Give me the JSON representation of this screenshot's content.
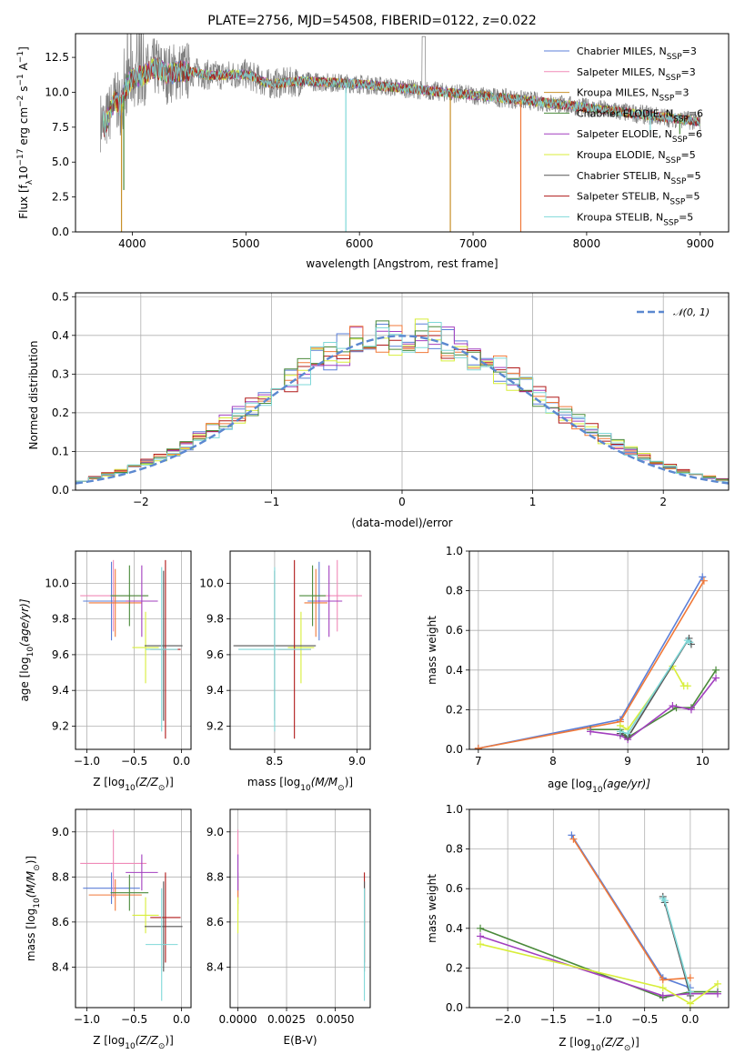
{
  "figure_title": "PLATE=2756, MJD=54508, FIBERID=0122, z=0.022",
  "colors": {
    "chabrier_miles": "#5b7fd8",
    "salpeter_miles": "#f08ab8",
    "kroupa_miles": "#c8902a",
    "chabrier_elodie": "#4a8a3a",
    "salpeter_elodie": "#a23fbf",
    "kroupa_elodie": "#d8ee3a",
    "chabrier_stelib": "#555555",
    "salpeter_stelib": "#b01818",
    "kroupa_stelib": "#7fd8d8",
    "orange": "#f07838",
    "teal": "#5aa0b8",
    "gauss": "#5b88d0"
  },
  "chart_data": [
    {
      "id": "spectrum",
      "type": "line",
      "title": "",
      "xlabel": "wavelength [Angstrom, rest frame]",
      "ylabel_parts": [
        "Flux [f",
        "λ",
        "10",
        "−17",
        " erg cm",
        "−2",
        " s",
        "−1",
        " A",
        "−1",
        "]"
      ],
      "xlim": [
        3500,
        9250
      ],
      "ylim": [
        0,
        14.2
      ],
      "xticks": [
        "4000",
        "5000",
        "6000",
        "7000",
        "8000",
        "9000"
      ],
      "yticks": [
        "0.0",
        "2.5",
        "5.0",
        "7.5",
        "10.0",
        "12.5"
      ],
      "legend_position": "top-right",
      "legend": [
        {
          "name": "Chabrier MILES, N",
          "sub": "SSP",
          "suffix": "=3",
          "color_key": "chabrier_miles"
        },
        {
          "name": "Salpeter MILES, N",
          "sub": "SSP",
          "suffix": "=3",
          "color_key": "salpeter_miles"
        },
        {
          "name": "Kroupa MILES, N",
          "sub": "SSP",
          "suffix": "=3",
          "color_key": "kroupa_miles"
        },
        {
          "name": "Chabrier ELODIE, N",
          "sub": "SSP",
          "suffix": "=6",
          "color_key": "chabrier_elodie"
        },
        {
          "name": "Salpeter ELODIE, N",
          "sub": "SSP",
          "suffix": "=6",
          "color_key": "salpeter_elodie"
        },
        {
          "name": "Kroupa ELODIE, N",
          "sub": "SSP",
          "suffix": "=5",
          "color_key": "kroupa_elodie"
        },
        {
          "name": "Chabrier STELIB, N",
          "sub": "SSP",
          "suffix": "=5",
          "color_key": "chabrier_stelib"
        },
        {
          "name": "Salpeter STELIB, N",
          "sub": "SSP",
          "suffix": "=5",
          "color_key": "salpeter_stelib"
        },
        {
          "name": "Kroupa STELIB, N",
          "sub": "SSP",
          "suffix": "=5",
          "color_key": "kroupa_stelib"
        }
      ],
      "continuum": {
        "x": [
          3750,
          3800,
          3850,
          3900,
          3950,
          4000,
          4100,
          4200,
          4300,
          4400,
          4500,
          4700,
          5000,
          5200,
          5500,
          6000,
          6500,
          7000,
          7500,
          8000,
          8500,
          9000
        ],
        "y": [
          7.5,
          8.5,
          9.5,
          9.0,
          10.5,
          11.0,
          11.2,
          11.8,
          11.3,
          11.5,
          11.5,
          11.2,
          11.3,
          10.6,
          10.8,
          10.6,
          10.2,
          9.8,
          9.4,
          8.9,
          8.4,
          7.9
        ]
      },
      "dips": [
        {
          "x": 3905,
          "y": 0.0,
          "color_key": "kroupa_miles"
        },
        {
          "x": 3925,
          "y": 3.0,
          "color_key": "chabrier_elodie"
        },
        {
          "x": 5880,
          "y": 0.0,
          "color_key": "kroupa_stelib"
        },
        {
          "x": 6800,
          "y": 0.0,
          "color_key": "kroupa_miles"
        },
        {
          "x": 7420,
          "y": 0.0,
          "color_key": "orange"
        },
        {
          "x": 8560,
          "y": 7.2,
          "color_key": "kroupa_stelib"
        },
        {
          "x": 8820,
          "y": 7.0,
          "color_key": "chabrier_elodie"
        }
      ]
    },
    {
      "id": "residuals",
      "type": "histogram",
      "title": "",
      "xlabel": "(data-model)/error",
      "ylabel": "Normed distribution",
      "xlim": [
        -2.5,
        2.5
      ],
      "ylim": [
        0,
        0.51
      ],
      "xticks": [
        "−2",
        "−1",
        "0",
        "1",
        "2"
      ],
      "yticks": [
        "0.0",
        "0.1",
        "0.2",
        "0.3",
        "0.4",
        "0.5"
      ],
      "legend_position": "top-right",
      "legend": [
        {
          "name": "𝒩(0, 1)",
          "color_key": "gauss"
        }
      ],
      "bin_width": 0.1,
      "bin_start": -2.5,
      "variant_color_keys": [
        "chabrier_miles",
        "salpeter_elodie",
        "kroupa_elodie",
        "salpeter_stelib",
        "orange",
        "chabrier_elodie",
        "kroupa_stelib"
      ]
    },
    {
      "id": "age_vs_Z",
      "type": "scatter",
      "xlabel_parts": [
        "Z [log",
        "10",
        "(Z/Z",
        "⊙",
        ")]"
      ],
      "ylabel_parts": [
        "age  [log",
        "10",
        "(age/yr)]"
      ],
      "xlim": [
        -1.12,
        0.1
      ],
      "ylim": [
        9.07,
        10.18
      ],
      "xticks": [
        "−1.0",
        "−0.5",
        "0.0"
      ],
      "yticks": [
        "9.2",
        "9.4",
        "9.6",
        "9.8",
        "10.0"
      ],
      "points": [
        {
          "x": -0.74,
          "y": 9.9,
          "xerr": 0.3,
          "yerr": 0.22,
          "color_key": "chabrier_miles"
        },
        {
          "x": -0.72,
          "y": 9.93,
          "xerr": 0.35,
          "yerr": 0.2,
          "color_key": "salpeter_miles"
        },
        {
          "x": -0.7,
          "y": 9.89,
          "xerr": 0.28,
          "yerr": 0.19,
          "color_key": "orange"
        },
        {
          "x": -0.55,
          "y": 9.93,
          "xerr": 0.2,
          "yerr": 0.17,
          "color_key": "chabrier_elodie"
        },
        {
          "x": -0.42,
          "y": 9.9,
          "xerr": 0.17,
          "yerr": 0.2,
          "color_key": "salpeter_elodie"
        },
        {
          "x": -0.38,
          "y": 9.64,
          "xerr": 0.14,
          "yerr": 0.2,
          "color_key": "kroupa_elodie"
        },
        {
          "x": -0.19,
          "y": 9.65,
          "xerr": 0.2,
          "yerr": 0.42,
          "color_key": "chabrier_stelib"
        },
        {
          "x": -0.17,
          "y": 9.63,
          "xerr": 0.16,
          "yerr": 0.5,
          "color_key": "salpeter_stelib"
        },
        {
          "x": -0.21,
          "y": 9.63,
          "xerr": 0.17,
          "yerr": 0.46,
          "color_key": "kroupa_stelib"
        }
      ]
    },
    {
      "id": "age_vs_mass",
      "type": "scatter",
      "xlabel_parts": [
        "mass [log",
        "10",
        "(M/M",
        "⊙",
        ")]"
      ],
      "xlim": [
        8.23,
        9.08
      ],
      "ylim": [
        9.07,
        10.18
      ],
      "xticks": [
        "8.5",
        "9.0"
      ],
      "yticks": [
        "9.2",
        "9.4",
        "9.6",
        "9.8",
        "10.0"
      ],
      "points": [
        {
          "x": 8.77,
          "y": 9.9,
          "xerr": 0.07,
          "yerr": 0.22,
          "color_key": "chabrier_miles"
        },
        {
          "x": 8.88,
          "y": 9.93,
          "xerr": 0.15,
          "yerr": 0.2,
          "color_key": "salpeter_miles"
        },
        {
          "x": 8.75,
          "y": 9.89,
          "xerr": 0.07,
          "yerr": 0.19,
          "color_key": "orange"
        },
        {
          "x": 8.73,
          "y": 9.93,
          "xerr": 0.08,
          "yerr": 0.17,
          "color_key": "chabrier_elodie"
        },
        {
          "x": 8.83,
          "y": 9.9,
          "xerr": 0.08,
          "yerr": 0.2,
          "color_key": "salpeter_elodie"
        },
        {
          "x": 8.66,
          "y": 9.64,
          "xerr": 0.08,
          "yerr": 0.2,
          "color_key": "kroupa_elodie"
        },
        {
          "x": 8.5,
          "y": 9.65,
          "xerr": 0.25,
          "yerr": 0.42,
          "color_key": "chabrier_stelib"
        },
        {
          "x": 8.62,
          "y": 9.63,
          "xerr": 0.1,
          "yerr": 0.5,
          "color_key": "salpeter_stelib"
        },
        {
          "x": 8.5,
          "y": 9.63,
          "xerr": 0.22,
          "yerr": 0.46,
          "color_key": "kroupa_stelib"
        }
      ]
    },
    {
      "id": "mass_weight_vs_age",
      "type": "line",
      "xlabel_parts": [
        "age  [log",
        "10",
        "(age/yr)]"
      ],
      "ylabel": "mass weight",
      "xlim": [
        6.88,
        10.35
      ],
      "ylim": [
        0,
        1.0
      ],
      "xticks": [
        "7",
        "8",
        "9",
        "10"
      ],
      "yticks": [
        "0.0",
        "0.2",
        "0.4",
        "0.6",
        "0.8",
        "1.0"
      ],
      "series": [
        {
          "color_key": "chabrier_miles",
          "x": [
            7.0,
            8.9,
            10.0
          ],
          "y": [
            0.005,
            0.15,
            0.87
          ]
        },
        {
          "color_key": "orange",
          "x": [
            7.0,
            8.9,
            10.02
          ],
          "y": [
            0.005,
            0.14,
            0.85
          ]
        },
        {
          "color_key": "chabrier_elodie",
          "x": [
            8.5,
            8.9,
            9.0,
            9.65,
            9.85,
            10.18
          ],
          "y": [
            0.1,
            0.1,
            0.06,
            0.21,
            0.21,
            0.4
          ]
        },
        {
          "color_key": "salpeter_elodie",
          "x": [
            8.5,
            8.9,
            9.0,
            9.6,
            9.85,
            10.18
          ],
          "y": [
            0.09,
            0.07,
            0.05,
            0.22,
            0.2,
            0.36
          ]
        },
        {
          "color_key": "kroupa_elodie",
          "x": [
            8.9,
            9.0,
            9.6,
            9.75,
            9.8
          ],
          "y": [
            0.12,
            0.1,
            0.42,
            0.32,
            0.32
          ]
        },
        {
          "color_key": "chabrier_stelib",
          "x": [
            8.9,
            9.0,
            9.82,
            9.85
          ],
          "y": [
            0.08,
            0.06,
            0.56,
            0.53
          ]
        },
        {
          "color_key": "kroupa_stelib",
          "x": [
            8.9,
            9.0,
            9.8,
            9.83
          ],
          "y": [
            0.09,
            0.08,
            0.55,
            0.54
          ]
        }
      ]
    },
    {
      "id": "mass_vs_Z",
      "type": "scatter",
      "xlabel_parts": [
        "Z [log",
        "10",
        "(Z/Z",
        "⊙",
        ")]"
      ],
      "ylabel_parts": [
        "mass [log",
        "10",
        "(M/M",
        "⊙",
        ")]"
      ],
      "xlim": [
        -1.12,
        0.1
      ],
      "ylim": [
        8.22,
        9.1
      ],
      "xticks": [
        "−1.0",
        "−0.5",
        "0.0"
      ],
      "yticks": [
        "8.4",
        "8.6",
        "8.8",
        "9.0"
      ],
      "points": [
        {
          "x": -0.74,
          "y": 8.75,
          "xerr": 0.3,
          "yerr": 0.07,
          "color_key": "chabrier_miles"
        },
        {
          "x": -0.72,
          "y": 8.86,
          "xerr": 0.35,
          "yerr": 0.15,
          "color_key": "salpeter_miles"
        },
        {
          "x": -0.7,
          "y": 8.72,
          "xerr": 0.28,
          "yerr": 0.07,
          "color_key": "orange"
        },
        {
          "x": -0.55,
          "y": 8.73,
          "xerr": 0.2,
          "yerr": 0.08,
          "color_key": "chabrier_elodie"
        },
        {
          "x": -0.42,
          "y": 8.82,
          "xerr": 0.17,
          "yerr": 0.08,
          "color_key": "salpeter_elodie"
        },
        {
          "x": -0.38,
          "y": 8.63,
          "xerr": 0.14,
          "yerr": 0.08,
          "color_key": "kroupa_elodie"
        },
        {
          "x": -0.19,
          "y": 8.58,
          "xerr": 0.2,
          "yerr": 0.2,
          "color_key": "chabrier_stelib"
        },
        {
          "x": -0.17,
          "y": 8.62,
          "xerr": 0.16,
          "yerr": 0.2,
          "color_key": "salpeter_stelib"
        },
        {
          "x": -0.21,
          "y": 8.5,
          "xerr": 0.17,
          "yerr": 0.25,
          "color_key": "kroupa_stelib"
        }
      ]
    },
    {
      "id": "mass_vs_ebv",
      "type": "scatter",
      "xlabel": "E(B-V)",
      "xlim": [
        -0.0004,
        0.0068
      ],
      "ylim": [
        8.22,
        9.1
      ],
      "xticks": [
        "0.0000",
        "0.0025",
        "0.0050"
      ],
      "yticks": [
        "8.4",
        "8.6",
        "8.8",
        "9.0"
      ],
      "points": [
        {
          "x": 0.0,
          "y": 8.75,
          "yerr": 0.07,
          "color_key": "chabrier_miles"
        },
        {
          "x": 0.0,
          "y": 8.86,
          "yerr": 0.15,
          "color_key": "salpeter_miles"
        },
        {
          "x": 0.0,
          "y": 8.72,
          "yerr": 0.07,
          "color_key": "orange"
        },
        {
          "x": 0.0,
          "y": 8.82,
          "yerr": 0.08,
          "color_key": "salpeter_elodie"
        },
        {
          "x": 0.0,
          "y": 8.63,
          "yerr": 0.08,
          "color_key": "kroupa_elodie"
        },
        {
          "x": 0.0065,
          "y": 8.62,
          "yerr": 0.2,
          "color_key": "salpeter_stelib"
        },
        {
          "x": 0.0065,
          "y": 8.58,
          "yerr": 0.2,
          "color_key": "chabrier_stelib"
        },
        {
          "x": 0.0065,
          "y": 8.5,
          "yerr": 0.25,
          "color_key": "kroupa_stelib"
        }
      ]
    },
    {
      "id": "mass_weight_vs_Z",
      "type": "line",
      "xlabel_parts": [
        "Z [log",
        "10",
        "(Z/Z",
        "⊙",
        ")]"
      ],
      "ylabel": "mass weight",
      "xlim": [
        -2.42,
        0.42
      ],
      "ylim": [
        0,
        1.0
      ],
      "xticks": [
        "−2.0",
        "−1.5",
        "−1.0",
        "−0.5",
        "0.0"
      ],
      "yticks": [
        "0.0",
        "0.2",
        "0.4",
        "0.6",
        "0.8",
        "1.0"
      ],
      "series": [
        {
          "color_key": "chabrier_miles",
          "x": [
            -1.3,
            -0.3,
            0.0
          ],
          "y": [
            0.87,
            0.15,
            0.1
          ]
        },
        {
          "color_key": "orange",
          "x": [
            -1.28,
            -0.3,
            0.0
          ],
          "y": [
            0.85,
            0.14,
            0.15
          ]
        },
        {
          "color_key": "chabrier_elodie",
          "x": [
            -2.3,
            -0.3,
            0.0,
            0.3
          ],
          "y": [
            0.4,
            0.05,
            0.08,
            0.08
          ]
        },
        {
          "color_key": "salpeter_elodie",
          "x": [
            -2.3,
            -0.3,
            0.0,
            0.3
          ],
          "y": [
            0.36,
            0.06,
            0.07,
            0.07
          ]
        },
        {
          "color_key": "kroupa_elodie",
          "x": [
            -2.3,
            -0.3,
            0.0,
            0.3
          ],
          "y": [
            0.32,
            0.1,
            0.02,
            0.12
          ]
        },
        {
          "color_key": "chabrier_stelib",
          "x": [
            -0.3,
            -0.28,
            0.0
          ],
          "y": [
            0.56,
            0.53,
            0.06
          ]
        },
        {
          "color_key": "kroupa_stelib",
          "x": [
            -0.3,
            -0.28,
            0.0
          ],
          "y": [
            0.55,
            0.54,
            0.08
          ]
        }
      ]
    }
  ]
}
